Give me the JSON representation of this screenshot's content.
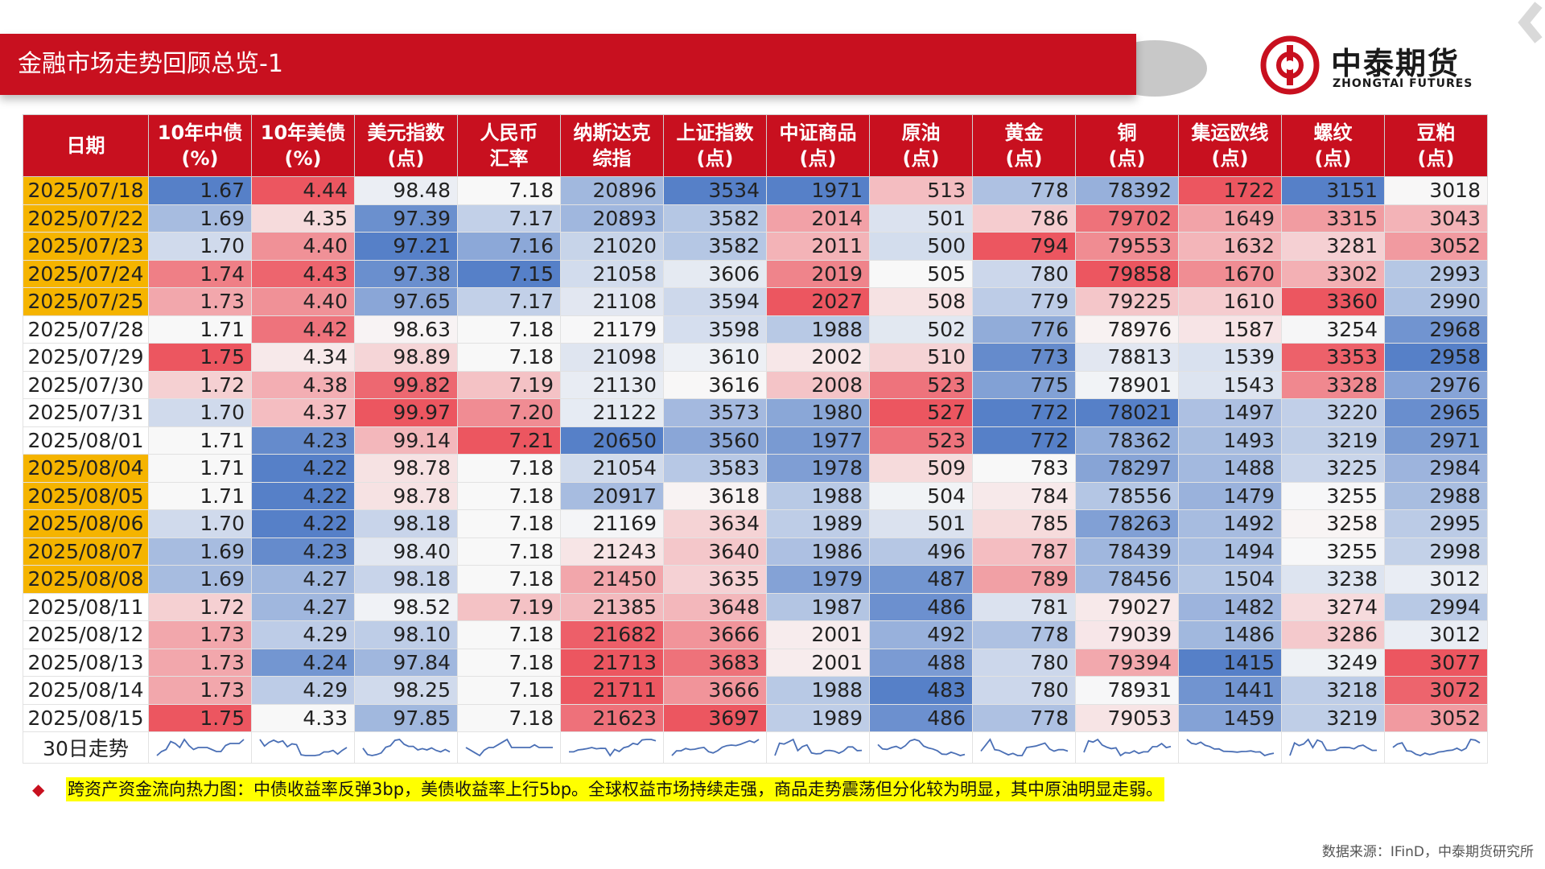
{
  "title": "金融市场走势回顾总览-1",
  "logo": {
    "cn": "中泰期货",
    "en": "ZHONGTAI FUTURES"
  },
  "colors": {
    "brand_red": "#c8101f",
    "highlight": "#f5b400",
    "note_bg": "#ffff00"
  },
  "table": {
    "headers": [
      {
        "l1": "日期",
        "l2": ""
      },
      {
        "l1": "10年中债",
        "l2": "(%)"
      },
      {
        "l1": "10年美债",
        "l2": "(%)"
      },
      {
        "l1": "美元指数",
        "l2": "(点)"
      },
      {
        "l1": "人民币",
        "l2": "汇率"
      },
      {
        "l1": "纳斯达克",
        "l2": "综指"
      },
      {
        "l1": "上证指数",
        "l2": "(点)"
      },
      {
        "l1": "中证商品",
        "l2": "(点)"
      },
      {
        "l1": "原油",
        "l2": "(点)"
      },
      {
        "l1": "黄金",
        "l2": "(点)"
      },
      {
        "l1": "铜",
        "l2": "(点)"
      },
      {
        "l1": "集运欧线",
        "l2": "(点)"
      },
      {
        "l1": "螺纹",
        "l2": "(点)"
      },
      {
        "l1": "豆粕",
        "l2": "(点)"
      }
    ],
    "rows": [
      {
        "date": "2025/07/18",
        "hl": true,
        "v": [
          "1.67",
          "4.44",
          "98.48",
          "7.18",
          "20896",
          "3534",
          "1971",
          "513",
          "778",
          "78392",
          "1722",
          "3151",
          "3018"
        ]
      },
      {
        "date": "2025/07/22",
        "hl": true,
        "v": [
          "1.69",
          "4.35",
          "97.39",
          "7.17",
          "20893",
          "3582",
          "2014",
          "501",
          "786",
          "79702",
          "1649",
          "3315",
          "3043"
        ]
      },
      {
        "date": "2025/07/23",
        "hl": true,
        "v": [
          "1.70",
          "4.40",
          "97.21",
          "7.16",
          "21020",
          "3582",
          "2011",
          "500",
          "794",
          "79553",
          "1632",
          "3281",
          "3052"
        ]
      },
      {
        "date": "2025/07/24",
        "hl": true,
        "v": [
          "1.74",
          "4.43",
          "97.38",
          "7.15",
          "21058",
          "3606",
          "2019",
          "505",
          "780",
          "79858",
          "1670",
          "3302",
          "2993"
        ]
      },
      {
        "date": "2025/07/25",
        "hl": true,
        "v": [
          "1.73",
          "4.40",
          "97.65",
          "7.17",
          "21108",
          "3594",
          "2027",
          "508",
          "779",
          "79225",
          "1610",
          "3360",
          "2990"
        ]
      },
      {
        "date": "2025/07/28",
        "hl": false,
        "v": [
          "1.71",
          "4.42",
          "98.63",
          "7.18",
          "21179",
          "3598",
          "1988",
          "502",
          "776",
          "78976",
          "1587",
          "3254",
          "2968"
        ]
      },
      {
        "date": "2025/07/29",
        "hl": false,
        "v": [
          "1.75",
          "4.34",
          "98.89",
          "7.18",
          "21098",
          "3610",
          "2002",
          "510",
          "773",
          "78813",
          "1539",
          "3353",
          "2958"
        ]
      },
      {
        "date": "2025/07/30",
        "hl": false,
        "v": [
          "1.72",
          "4.38",
          "99.82",
          "7.19",
          "21130",
          "3616",
          "2008",
          "523",
          "775",
          "78901",
          "1543",
          "3328",
          "2976"
        ]
      },
      {
        "date": "2025/07/31",
        "hl": false,
        "v": [
          "1.70",
          "4.37",
          "99.97",
          "7.20",
          "21122",
          "3573",
          "1980",
          "527",
          "772",
          "78021",
          "1497",
          "3220",
          "2965"
        ]
      },
      {
        "date": "2025/08/01",
        "hl": false,
        "v": [
          "1.71",
          "4.23",
          "99.14",
          "7.21",
          "20650",
          "3560",
          "1977",
          "523",
          "772",
          "78362",
          "1493",
          "3219",
          "2971"
        ]
      },
      {
        "date": "2025/08/04",
        "hl": true,
        "v": [
          "1.71",
          "4.22",
          "98.78",
          "7.18",
          "21054",
          "3583",
          "1978",
          "509",
          "783",
          "78297",
          "1488",
          "3225",
          "2984"
        ]
      },
      {
        "date": "2025/08/05",
        "hl": true,
        "v": [
          "1.71",
          "4.22",
          "98.78",
          "7.18",
          "20917",
          "3618",
          "1988",
          "504",
          "784",
          "78556",
          "1479",
          "3255",
          "2988"
        ]
      },
      {
        "date": "2025/08/06",
        "hl": true,
        "v": [
          "1.70",
          "4.22",
          "98.18",
          "7.18",
          "21169",
          "3634",
          "1989",
          "501",
          "785",
          "78263",
          "1492",
          "3258",
          "2995"
        ]
      },
      {
        "date": "2025/08/07",
        "hl": true,
        "v": [
          "1.69",
          "4.23",
          "98.40",
          "7.18",
          "21243",
          "3640",
          "1986",
          "496",
          "787",
          "78439",
          "1494",
          "3255",
          "2998"
        ]
      },
      {
        "date": "2025/08/08",
        "hl": true,
        "v": [
          "1.69",
          "4.27",
          "98.18",
          "7.18",
          "21450",
          "3635",
          "1979",
          "487",
          "789",
          "78456",
          "1504",
          "3238",
          "3012"
        ]
      },
      {
        "date": "2025/08/11",
        "hl": false,
        "v": [
          "1.72",
          "4.27",
          "98.52",
          "7.19",
          "21385",
          "3648",
          "1987",
          "486",
          "781",
          "79027",
          "1482",
          "3274",
          "2994"
        ]
      },
      {
        "date": "2025/08/12",
        "hl": false,
        "v": [
          "1.73",
          "4.29",
          "98.10",
          "7.18",
          "21682",
          "3666",
          "2001",
          "492",
          "778",
          "79039",
          "1486",
          "3286",
          "3012"
        ]
      },
      {
        "date": "2025/08/13",
        "hl": false,
        "v": [
          "1.73",
          "4.24",
          "97.84",
          "7.18",
          "21713",
          "3683",
          "2001",
          "488",
          "780",
          "79394",
          "1415",
          "3249",
          "3077"
        ]
      },
      {
        "date": "2025/08/14",
        "hl": false,
        "v": [
          "1.73",
          "4.29",
          "98.25",
          "7.18",
          "21711",
          "3666",
          "1988",
          "483",
          "780",
          "78931",
          "1441",
          "3218",
          "3072"
        ]
      },
      {
        "date": "2025/08/15",
        "hl": false,
        "v": [
          "1.75",
          "4.33",
          "97.85",
          "7.18",
          "21623",
          "3697",
          "1989",
          "486",
          "778",
          "79053",
          "1459",
          "3219",
          "3052"
        ]
      }
    ],
    "trend_label": "30日走势"
  },
  "note": "跨资产资金流向热力图：中债收益率反弹3bp，美债收益率上行5bp。全球权益市场持续走强，商品走势震荡但分化较为明显，其中原油明显走弱。",
  "source": "数据来源：IFinD，中泰期货研究所"
}
